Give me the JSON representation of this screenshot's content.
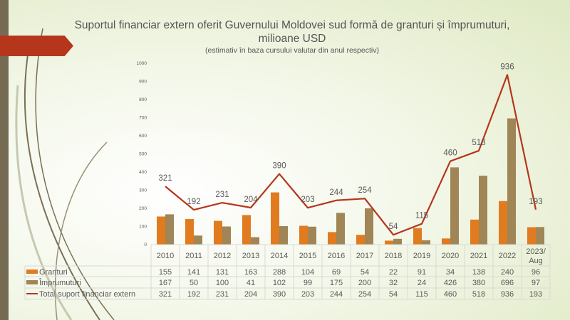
{
  "chart_data": {
    "type": "bar",
    "title": "Suportul financiar extern oferit Guvernului Moldovei sud formă de granturi și împrumuturi, milioane USD",
    "subtitle": "(estimativ în baza cursului valutar din anul respectiv)",
    "categories": [
      "2010",
      "2011",
      "2012",
      "2013",
      "2014",
      "2015",
      "2016",
      "2017",
      "2018",
      "2019",
      "2020",
      "2021",
      "2022",
      "2023/ Aug"
    ],
    "ylim": [
      0,
      1000
    ],
    "yticks": [
      0,
      100,
      200,
      300,
      400,
      500,
      600,
      700,
      800,
      900,
      1000
    ],
    "grid": false,
    "legend": "data-table",
    "series": [
      {
        "name": "Granturi",
        "type": "bar",
        "color": "#e07b1f",
        "values": [
          155,
          141,
          131,
          163,
          288,
          104,
          69,
          54,
          22,
          91,
          34,
          138,
          240,
          96
        ]
      },
      {
        "name": "Împrumuturi",
        "type": "bar",
        "color": "#a08556",
        "values": [
          167,
          50,
          100,
          41,
          102,
          99,
          175,
          200,
          32,
          24,
          426,
          380,
          696,
          97
        ]
      },
      {
        "name": "Total suport financiar extern",
        "type": "line",
        "color": "#b5361b",
        "values": [
          321,
          192,
          231,
          204,
          390,
          203,
          244,
          254,
          54,
          115,
          460,
          518,
          936,
          193
        ]
      }
    ]
  }
}
